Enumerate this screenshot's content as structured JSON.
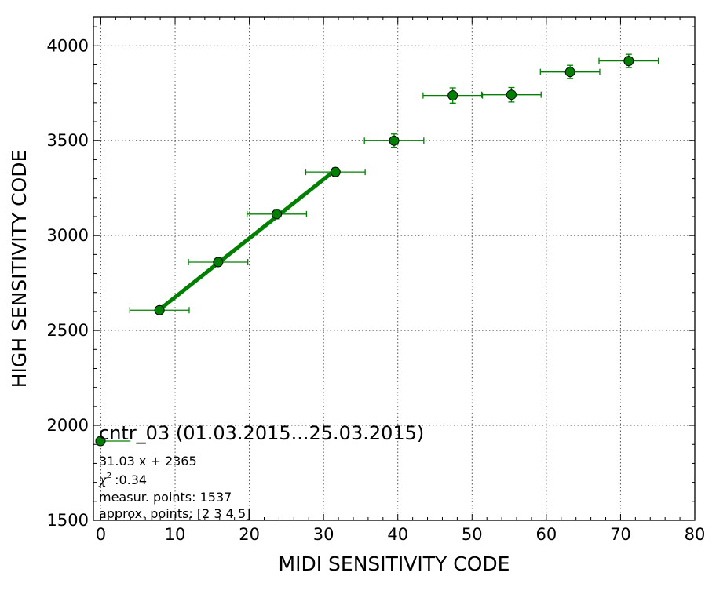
{
  "chart_data": {
    "type": "scatter",
    "xlabel": "MIDI SENSITIVITY CODE",
    "ylabel": "HIGH SENSITIVITY CODE",
    "xlim": [
      -1,
      80
    ],
    "ylim": [
      1500,
      4150
    ],
    "x_ticks": [
      0,
      10,
      20,
      30,
      40,
      50,
      60,
      70,
      80
    ],
    "y_ticks": [
      1500,
      2000,
      2500,
      3000,
      3500,
      4000
    ],
    "grid": true,
    "grid_style": "dotted",
    "colors": {
      "series": "#008000",
      "marker_edge": "#000000",
      "frame": "#000000",
      "grid": "#555555"
    },
    "series": [
      {
        "name": "cntr_03 (01.03.2015...25.03.2015)",
        "x": [
          7.9,
          15.8,
          23.7,
          31.6,
          39.5,
          47.4,
          55.3,
          63.2,
          71.1
        ],
        "y": [
          2607,
          2860,
          3113,
          3335,
          3500,
          3738,
          3742,
          3862,
          3920
        ],
        "x_err": [
          4.0,
          4.0,
          4.0,
          4.0,
          4.0,
          4.0,
          4.0,
          4.0,
          4.0
        ],
        "y_err": [
          12,
          20,
          25,
          22,
          35,
          40,
          38,
          35,
          35
        ]
      }
    ],
    "fit_line": {
      "slope": 31.03,
      "intercept": 2365,
      "x_range": [
        7.9,
        31.6
      ]
    },
    "legend": {
      "placement": "lower-left",
      "label": "cntr_03 (01.03.2015...25.03.2015)",
      "fit_text": "31.03 x + 2365",
      "chi_symbol": "χ",
      "chi_sup": "2",
      "chi_text": ":0.34",
      "measur_text": "measur. points: 1537",
      "approx_text": "approx. points: [2 3 4 5]"
    }
  }
}
